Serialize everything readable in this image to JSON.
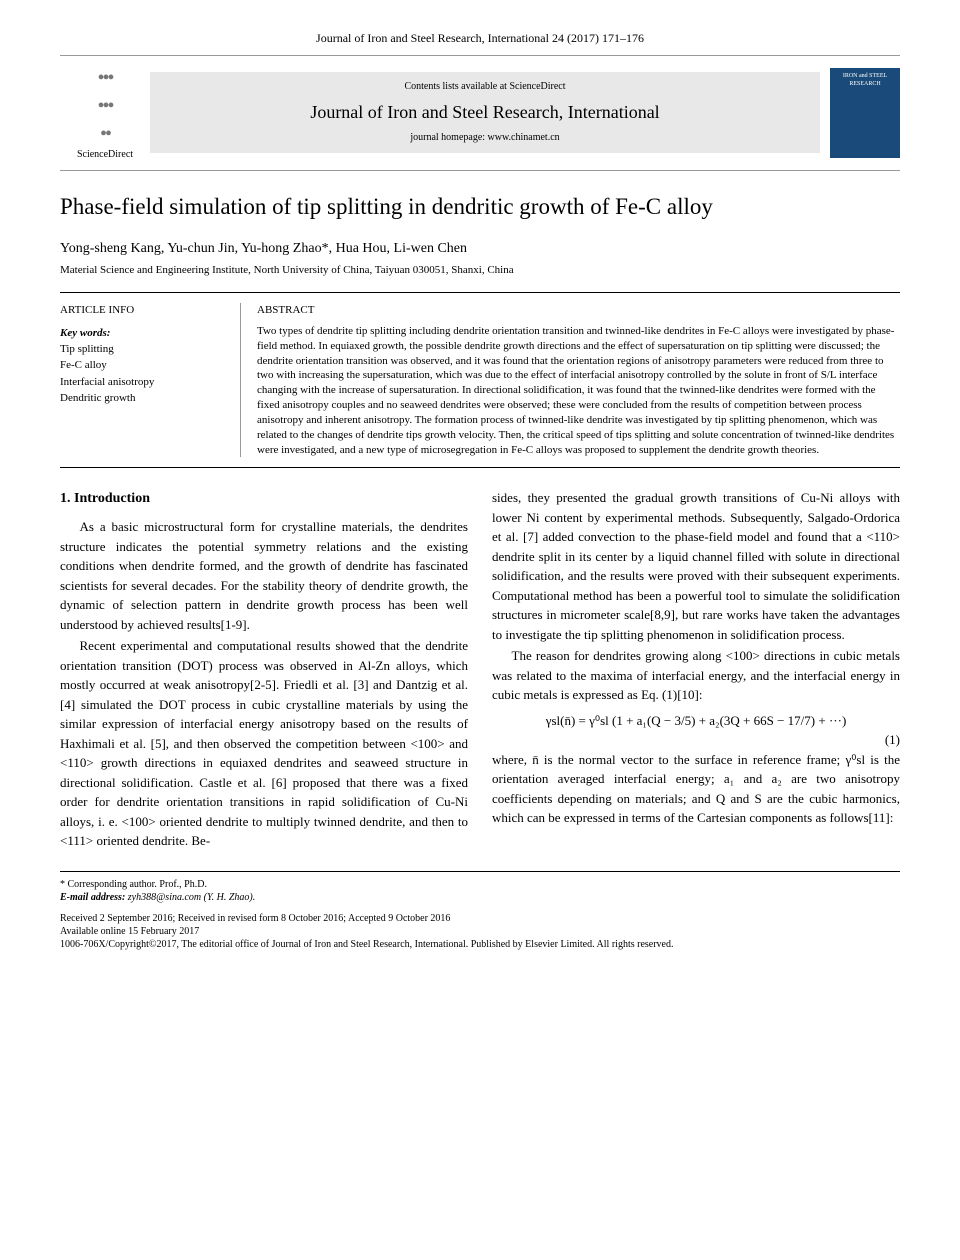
{
  "journal_ref": "Journal of Iron and Steel Research, International 24 (2017) 171–176",
  "header": {
    "logo_text": "ScienceDirect",
    "contents_line": "Contents lists available at ScienceDirect",
    "journal_name": "Journal of Iron and Steel Research, International",
    "homepage": "journal homepage: www.chinamet.cn",
    "cover_text": "IRON and STEEL RESEARCH"
  },
  "title": "Phase-field simulation of tip splitting in dendritic growth of Fe-C alloy",
  "authors": "Yong-sheng Kang,    Yu-chun Jin,    Yu-hong Zhao*,    Hua Hou,    Li-wen Chen",
  "affiliation": "Material Science and Engineering Institute, North University of China, Taiyuan 030051, Shanxi, China",
  "article_info": {
    "heading": "ARTICLE INFO",
    "kw_label": "Key words:",
    "keywords": [
      "Tip splitting",
      "Fe-C alloy",
      "Interfacial anisotropy",
      "Dendritic growth"
    ]
  },
  "abstract": {
    "heading": "ABSTRACT",
    "text": "Two types of dendrite tip splitting including dendrite orientation transition and twinned-like dendrites in Fe-C alloys were investigated by phase-field method. In equiaxed growth, the possible dendrite growth directions and the effect of supersaturation on tip splitting were discussed; the dendrite orientation transition was observed, and it was found that the orientation regions of anisotropy parameters were reduced from three to two with increasing the supersaturation, which was due to the effect of interfacial anisotropy controlled by the solute in front of S/L interface changing with the increase of supersaturation. In directional solidification, it was found that the twinned-like dendrites were formed with the fixed anisotropy couples and no seaweed dendrites were observed; these were concluded from the results of competition between process anisotropy and inherent anisotropy. The formation process of twinned-like dendrite was investigated by tip splitting phenomenon, which was related to the changes of dendrite tips growth velocity. Then, the critical speed of tips splitting and solute concentration of twinned-like dendrites were investigated, and a new type of microsegregation in Fe-C alloys was proposed to supplement the dendrite growth theories."
  },
  "section1_heading": "1. Introduction",
  "para1": "As a basic microstructural form for crystalline materials, the dendrites structure indicates the potential symmetry relations and the existing conditions when dendrite formed, and the growth of dendrite has fascinated scientists for several decades. For the stability theory of dendrite growth, the dynamic of selection pattern in dendrite growth process has been well understood by achieved results[1-9].",
  "para2": "Recent experimental and computational results showed that the dendrite orientation transition (DOT) process was observed in Al-Zn alloys, which mostly occurred at weak anisotropy[2-5]. Friedli et al. [3] and Dantzig et al. [4] simulated the DOT process in cubic crystalline materials by using the similar expression of interfacial energy anisotropy based on the results of Haxhimali et al. [5], and then observed the competition between <100> and <110> growth directions in equiaxed dendrites and seaweed structure in directional solidification. Castle et al. [6] proposed that there was a fixed order for dendrite orientation transitions in rapid solidification of Cu-Ni alloys, i. e. <100> oriented dendrite to multiply twinned dendrite, and then to <111> oriented dendrite. Be-",
  "para3": "sides, they presented the gradual growth transitions of Cu-Ni alloys with lower Ni content by experimental methods. Subsequently, Salgado-Ordorica et al. [7] added convection to the phase-field model and found that a <110> dendrite split in its center by a liquid channel filled with solute in directional solidification, and the results were proved with their subsequent experiments. Computational method has been a powerful tool to simulate the solidification structures in micrometer scale[8,9], but rare works have taken the advantages to investigate the tip splitting phenomenon in solidification process.",
  "para4": "The reason for dendrites growing along <100> directions in cubic metals was related to the maxima of interfacial energy, and the interfacial energy in cubic metals is expressed as Eq. (1)[10]:",
  "equation1": "γsl(n̄) = γ⁰sl (1 + a₁(Q − 3/5) + a₂(3Q + 66S − 17/7) + ···)",
  "eq1_num": "(1)",
  "para5": "where, n̄ is the normal vector to the surface in reference frame; γ⁰sl is the orientation averaged interfacial energy; a₁ and a₂ are two anisotropy coefficients depending on materials; and Q and S are the cubic harmonics, which can be expressed in terms of the Cartesian components as follows[11]:",
  "footnotes": {
    "corresponding": "* Corresponding author. Prof., Ph.D.",
    "email_label": "E-mail address:",
    "email": "zyh388@sina.com (Y. H. Zhao).",
    "received": "Received 2 September 2016; Received in revised form 8 October 2016; Accepted 9 October 2016",
    "available": "Available online 15 February 2017",
    "copyright": "1006-706X/Copyright©2017, The editorial office of Journal of Iron and Steel Research, International. Published by Elsevier Limited. All rights reserved."
  }
}
